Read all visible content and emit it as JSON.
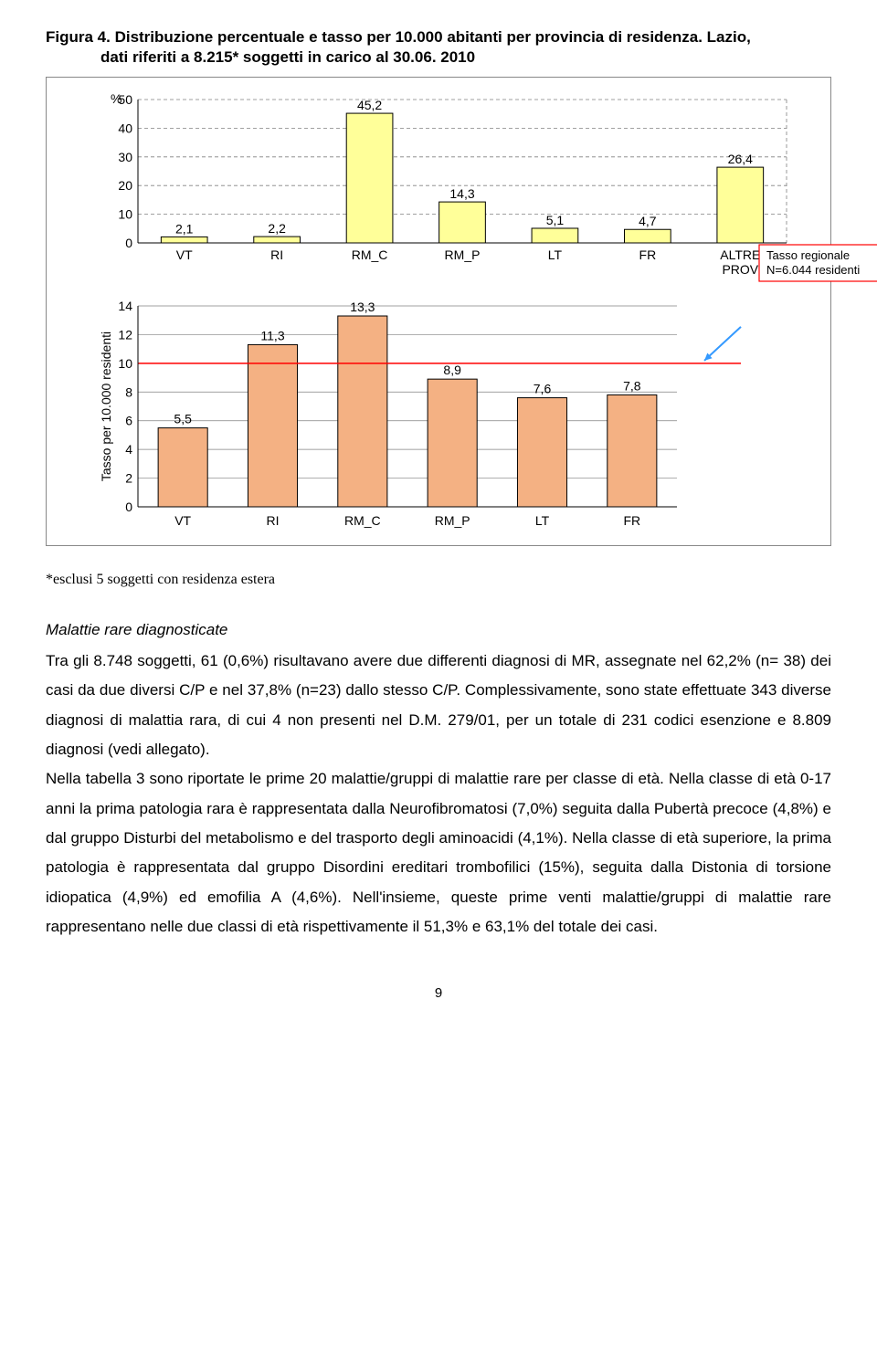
{
  "figure": {
    "title_line1": "Figura 4. Distribuzione percentuale e tasso per 10.000 abitanti per provincia di residenza. Lazio,",
    "title_line2": "dati riferiti a 8.215* soggetti in carico al 30.06. 2010"
  },
  "chart_top": {
    "type": "bar",
    "y_axis_label": "%",
    "categories": [
      "VT",
      "RI",
      "RM_C",
      "RM_P",
      "LT",
      "FR",
      "ALTRE PROV"
    ],
    "values": [
      2.1,
      2.2,
      45.2,
      14.3,
      5.1,
      4.7,
      26.4
    ],
    "value_labels": [
      "2,1",
      "2,2",
      "45,2",
      "14,3",
      "5,1",
      "4,7",
      "26,4"
    ],
    "ylim": [
      0,
      50
    ],
    "ytick_step": 10,
    "bar_fill": "#ffff99",
    "bar_stroke": "#000000",
    "grid_color": "#808080",
    "label_fontsize": 14,
    "tick_fontsize": 14,
    "legend_box": {
      "text1": "Tasso regionale",
      "text2": "N=6.044 residenti",
      "border": "#ff0000"
    }
  },
  "chart_bottom": {
    "type": "bar",
    "y_axis_label": "Tasso per 10.000 residenti",
    "categories": [
      "VT",
      "RI",
      "RM_C",
      "RM_P",
      "LT",
      "FR"
    ],
    "values": [
      5.5,
      11.3,
      13.3,
      8.9,
      7.6,
      7.8
    ],
    "value_labels": [
      "5,5",
      "11,3",
      "13,3",
      "8,9",
      "7,6",
      "7,8"
    ],
    "ylim": [
      0,
      14
    ],
    "ytick_step": 2,
    "bar_fill": "#f4b183",
    "bar_stroke": "#000000",
    "grid_color": "#808080",
    "label_fontsize": 14,
    "tick_fontsize": 14,
    "ref_line_value": 10,
    "ref_line_color": "#ff0000",
    "arrow_color": "#3399ff"
  },
  "footnote": "*esclusi 5 soggetti con residenza estera",
  "section_title": "Malattie rare diagnosticate",
  "body": "Tra gli 8.748 soggetti, 61 (0,6%) risultavano avere due differenti diagnosi di MR,  assegnate nel 62,2% (n= 38) dei casi da due diversi C/P e nel 37,8% (n=23) dallo stesso C/P. Complessivamente, sono state effettuate 343 diverse diagnosi di malattia rara, di cui 4 non presenti nel D.M. 279/01, per un totale di 231 codici esenzione e 8.809 diagnosi (vedi allegato).\nNella tabella 3 sono riportate le prime 20 malattie/gruppi di malattie rare per classe di età. Nella classe di età 0-17 anni la prima patologia rara è rappresentata dalla Neurofibromatosi (7,0%) seguita dalla Pubertà precoce (4,8%) e dal gruppo Disturbi del metabolismo e del trasporto degli aminoacidi (4,1%). Nella classe di età superiore, la prima patologia è rappresentata dal gruppo Disordini ereditari trombofilici (15%), seguita dalla Distonia di torsione idiopatica (4,9%) ed emofilia A (4,6%). Nell'insieme, queste prime venti malattie/gruppi di malattie rare rappresentano nelle due classi di età rispettivamente il 51,3% e 63,1% del totale dei casi.",
  "page_number": "9"
}
